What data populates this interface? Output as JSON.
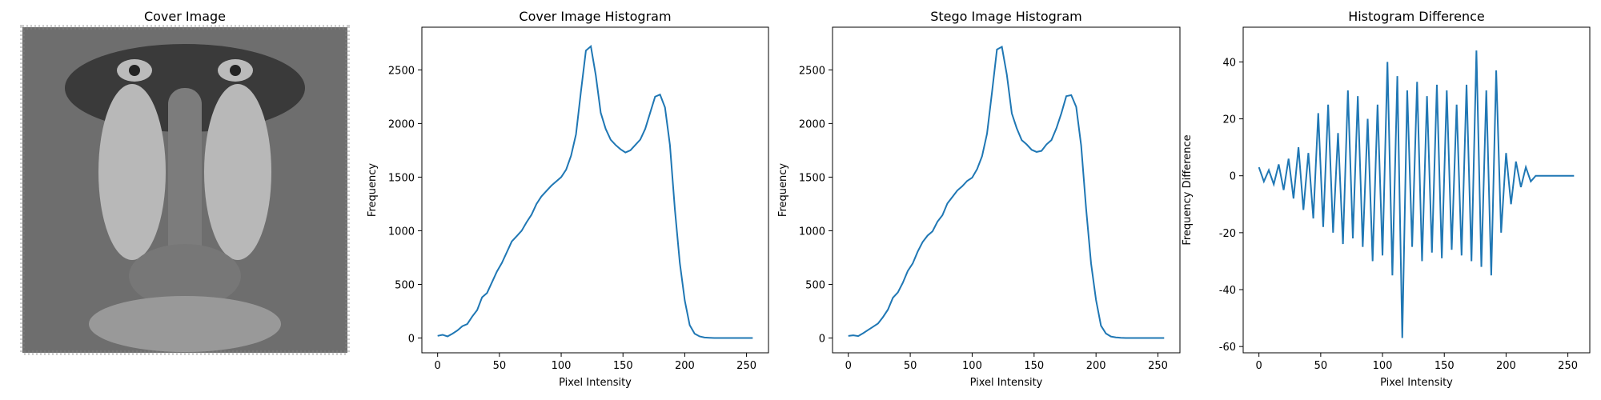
{
  "chart_data": [
    {
      "type": "image",
      "title": "Cover Image"
    },
    {
      "type": "line",
      "title": "Cover Image Histogram",
      "xlabel": "Pixel Intensity",
      "ylabel": "Frequency",
      "color": "#1f77b4",
      "x": [
        0,
        4,
        8,
        12,
        16,
        20,
        24,
        28,
        32,
        36,
        40,
        44,
        48,
        52,
        56,
        60,
        64,
        68,
        72,
        76,
        80,
        84,
        88,
        92,
        96,
        100,
        104,
        108,
        112,
        116,
        120,
        124,
        128,
        132,
        136,
        140,
        144,
        148,
        152,
        156,
        160,
        164,
        168,
        172,
        176,
        180,
        184,
        188,
        192,
        196,
        200,
        204,
        208,
        212,
        216,
        220,
        224,
        228,
        232,
        236,
        240,
        244,
        248,
        252,
        255
      ],
      "values": [
        20,
        30,
        15,
        40,
        70,
        110,
        130,
        200,
        260,
        380,
        420,
        520,
        620,
        700,
        800,
        900,
        950,
        1000,
        1080,
        1150,
        1250,
        1320,
        1370,
        1420,
        1460,
        1500,
        1570,
        1700,
        1900,
        2300,
        2680,
        2720,
        2450,
        2100,
        1950,
        1850,
        1800,
        1760,
        1730,
        1750,
        1800,
        1850,
        1950,
        2100,
        2250,
        2270,
        2150,
        1800,
        1200,
        700,
        350,
        120,
        40,
        15,
        5,
        2,
        0,
        0,
        0,
        0,
        0,
        0,
        0,
        0,
        0
      ],
      "xlim": [
        -12.75,
        267.75
      ],
      "xticks": [
        0,
        50,
        100,
        150,
        200,
        250
      ],
      "ylim": [
        -138,
        2898
      ],
      "yticks": [
        0,
        500,
        1000,
        1500,
        2000,
        2500
      ]
    },
    {
      "type": "line",
      "title": "Stego Image Histogram",
      "xlabel": "Pixel Intensity",
      "ylabel": "Frequency",
      "color": "#1f77b4",
      "x": [
        0,
        4,
        8,
        12,
        16,
        20,
        24,
        28,
        32,
        36,
        40,
        44,
        48,
        52,
        56,
        60,
        64,
        68,
        72,
        76,
        80,
        84,
        88,
        92,
        96,
        100,
        104,
        108,
        112,
        116,
        120,
        124,
        128,
        132,
        136,
        140,
        144,
        148,
        152,
        156,
        160,
        164,
        168,
        172,
        176,
        180,
        184,
        188,
        192,
        196,
        200,
        204,
        208,
        212,
        216,
        220,
        224,
        228,
        232,
        236,
        240,
        244,
        248,
        252,
        255
      ],
      "values": [
        20,
        25,
        18,
        45,
        75,
        105,
        135,
        195,
        265,
        375,
        425,
        515,
        625,
        695,
        805,
        895,
        955,
        995,
        1085,
        1145,
        1255,
        1315,
        1375,
        1415,
        1465,
        1495,
        1575,
        1695,
        1905,
        2290,
        2690,
        2715,
        2455,
        2095,
        1955,
        1845,
        1805,
        1755,
        1735,
        1745,
        1805,
        1845,
        1955,
        2095,
        2255,
        2265,
        2155,
        1795,
        1205,
        695,
        355,
        115,
        42,
        14,
        6,
        2,
        0,
        0,
        0,
        0,
        0,
        0,
        0,
        0,
        0
      ],
      "xlim": [
        -12.75,
        267.75
      ],
      "xticks": [
        0,
        50,
        100,
        150,
        200,
        250
      ],
      "ylim": [
        -138,
        2898
      ],
      "yticks": [
        0,
        500,
        1000,
        1500,
        2000,
        2500
      ]
    },
    {
      "type": "line",
      "title": "Histogram Difference",
      "xlabel": "Pixel Intensity",
      "ylabel": "Frequency Difference",
      "color": "#1f77b4",
      "x": [
        0,
        4,
        8,
        12,
        16,
        20,
        24,
        28,
        32,
        36,
        40,
        44,
        48,
        52,
        56,
        60,
        64,
        68,
        72,
        76,
        80,
        84,
        88,
        92,
        96,
        100,
        104,
        108,
        112,
        116,
        120,
        124,
        128,
        132,
        136,
        140,
        144,
        148,
        152,
        156,
        160,
        164,
        168,
        172,
        176,
        180,
        184,
        188,
        192,
        196,
        200,
        204,
        208,
        212,
        216,
        220,
        224,
        228,
        232,
        236,
        240,
        244,
        248,
        252,
        255
      ],
      "values": [
        3,
        -2,
        2,
        -3,
        4,
        -5,
        6,
        -8,
        10,
        -12,
        8,
        -15,
        22,
        -18,
        25,
        -20,
        15,
        -24,
        30,
        -22,
        28,
        -25,
        20,
        -30,
        25,
        -28,
        40,
        -35,
        35,
        -57,
        30,
        -25,
        33,
        -30,
        28,
        -27,
        32,
        -29,
        30,
        -26,
        25,
        -28,
        32,
        -30,
        44,
        -32,
        30,
        -35,
        37,
        -20,
        8,
        -10,
        5,
        -4,
        3,
        -2,
        0,
        0,
        0,
        0,
        0,
        0,
        0,
        0,
        0
      ],
      "xlim": [
        -12.75,
        267.75
      ],
      "xticks": [
        0,
        50,
        100,
        150,
        200,
        250
      ],
      "ylim": [
        -62.2,
        52.2
      ],
      "yticks": [
        -60,
        -40,
        -20,
        0,
        20,
        40
      ]
    }
  ]
}
